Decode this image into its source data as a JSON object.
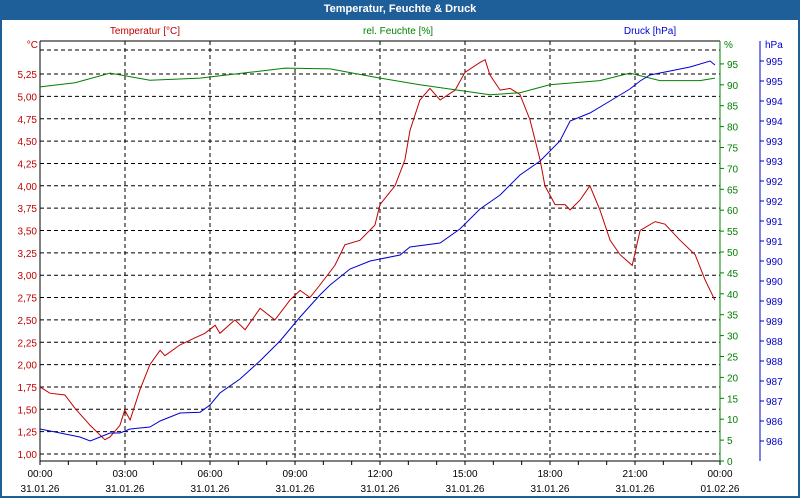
{
  "title": "Temperatur, Feuchte & Druck",
  "colors": {
    "temperature": "#c00000",
    "humidity": "#008000",
    "pressure": "#0000d0",
    "titlebar": "#1f5f99"
  },
  "chart_data": {
    "type": "line",
    "title": "Temperatur, Feuchte & Druck",
    "xlabel": "",
    "x_ticks": [
      {
        "time": "00:00",
        "date": "31.01.26"
      },
      {
        "time": "03:00",
        "date": "31.01.26"
      },
      {
        "time": "06:00",
        "date": "31.01.26"
      },
      {
        "time": "09:00",
        "date": "31.01.26"
      },
      {
        "time": "12:00",
        "date": "31.01.26"
      },
      {
        "time": "15:00",
        "date": "31.01.26"
      },
      {
        "time": "18:00",
        "date": "31.01.26"
      },
      {
        "time": "21:00",
        "date": "31.01.26"
      },
      {
        "time": "00:00",
        "date": "01.02.26"
      }
    ],
    "xlim_hours": [
      0,
      24
    ],
    "axes": {
      "temperature": {
        "label": "Temperatur [°C]",
        "unit": "°C",
        "ylim": [
          1.0,
          5.5
        ],
        "ticks": [
          "1,00",
          "1,25",
          "1,50",
          "1,75",
          "2,00",
          "2,25",
          "2,50",
          "2,75",
          "3,00",
          "3,25",
          "3,50",
          "3,75",
          "4,00",
          "4,25",
          "4,50",
          "4,75",
          "5,00",
          "5,25"
        ]
      },
      "humidity": {
        "label": "rel. Feuchte [%]",
        "unit": "%",
        "ylim": [
          0,
          100
        ],
        "ticks": [
          "0",
          "5",
          "10",
          "15",
          "20",
          "25",
          "30",
          "35",
          "40",
          "45",
          "50",
          "55",
          "60",
          "65",
          "70",
          "75",
          "80",
          "85",
          "90",
          "95"
        ]
      },
      "pressure": {
        "label": "Druck [hPa]",
        "unit": "hPa",
        "ylim": [
          985.5,
          996.0
        ],
        "ticks": [
          "986",
          "986",
          "987",
          "987",
          "988",
          "988",
          "989",
          "989",
          "990",
          "990",
          "991",
          "991",
          "992",
          "992",
          "993",
          "993",
          "994",
          "994",
          "995",
          "995"
        ]
      }
    },
    "series": [
      {
        "name": "Temperatur",
        "axis": "temperature",
        "hours": [
          0,
          0.35,
          0.88,
          1.24,
          1.77,
          2.29,
          2.47,
          2.82,
          2.99,
          3.18,
          3.53,
          3.88,
          4.24,
          4.41,
          4.94,
          5.47,
          5.82,
          6.18,
          6.35,
          6.88,
          7.24,
          7.77,
          8.29,
          8.82,
          9.18,
          9.53,
          9.88,
          10.41,
          10.76,
          11.29,
          11.82,
          12.0,
          12.53,
          12.88,
          13.06,
          13.41,
          13.76,
          14.12,
          14.65,
          15.0,
          15.53,
          15.71,
          15.88,
          16.24,
          16.59,
          16.94,
          17.29,
          17.65,
          17.82,
          18.18,
          18.53,
          18.71,
          19.06,
          19.41,
          19.76,
          20.12,
          20.47,
          20.9,
          21.18,
          21.71,
          22.06,
          22.59,
          23.12,
          23.47,
          23.82
        ],
        "values": [
          1.75,
          1.68,
          1.66,
          1.51,
          1.32,
          1.16,
          1.19,
          1.32,
          1.49,
          1.38,
          1.72,
          2.0,
          2.16,
          2.1,
          2.22,
          2.3,
          2.35,
          2.44,
          2.35,
          2.5,
          2.39,
          2.63,
          2.5,
          2.72,
          2.83,
          2.75,
          2.89,
          3.11,
          3.34,
          3.39,
          3.56,
          3.79,
          4.0,
          4.29,
          4.62,
          4.96,
          5.09,
          4.96,
          5.07,
          5.27,
          5.38,
          5.41,
          5.24,
          5.07,
          5.09,
          5.02,
          4.74,
          4.29,
          4.0,
          3.79,
          3.79,
          3.73,
          3.84,
          4.0,
          3.73,
          3.39,
          3.23,
          3.11,
          3.5,
          3.6,
          3.57,
          3.39,
          3.23,
          2.95,
          2.72
        ]
      },
      {
        "name": "rel. Feuchte",
        "axis": "humidity",
        "hours": [
          0,
          1.24,
          2.47,
          3.88,
          5.65,
          7.41,
          8.65,
          10.24,
          12.0,
          13.41,
          15.88,
          16.94,
          17.99,
          19.76,
          20.82,
          21.88,
          23.29,
          23.82
        ],
        "values": [
          89.5,
          90.5,
          92.8,
          91.1,
          91.6,
          93.0,
          94.0,
          93.8,
          91.6,
          90.0,
          87.6,
          88.1,
          90.0,
          91.0,
          92.8,
          91.0,
          91.0,
          91.6
        ]
      },
      {
        "name": "Druck",
        "axis": "pressure",
        "hours": [
          0,
          0.71,
          1.41,
          1.77,
          2.12,
          2.47,
          2.82,
          3.18,
          3.88,
          4.24,
          4.94,
          5.65,
          6.0,
          6.35,
          7.06,
          7.76,
          8.47,
          9.18,
          9.88,
          10.24,
          10.94,
          11.65,
          12.71,
          13.06,
          14.12,
          14.82,
          15.53,
          16.24,
          16.94,
          17.65,
          18.35,
          18.71,
          19.41,
          20.12,
          20.82,
          21.18,
          21.53,
          22.24,
          22.94,
          23.65,
          23.82
        ],
        "values": [
          986.3,
          986.2,
          986.1,
          986.0,
          986.1,
          986.2,
          986.2,
          986.3,
          986.35,
          986.5,
          986.7,
          986.72,
          986.9,
          987.2,
          987.55,
          988.0,
          988.5,
          989.1,
          989.65,
          989.9,
          990.3,
          990.5,
          990.65,
          990.85,
          990.95,
          991.3,
          991.8,
          992.15,
          992.65,
          993.0,
          993.5,
          994.0,
          994.2,
          994.5,
          994.8,
          995.0,
          995.15,
          995.25,
          995.35,
          995.5,
          995.4
        ]
      }
    ]
  }
}
